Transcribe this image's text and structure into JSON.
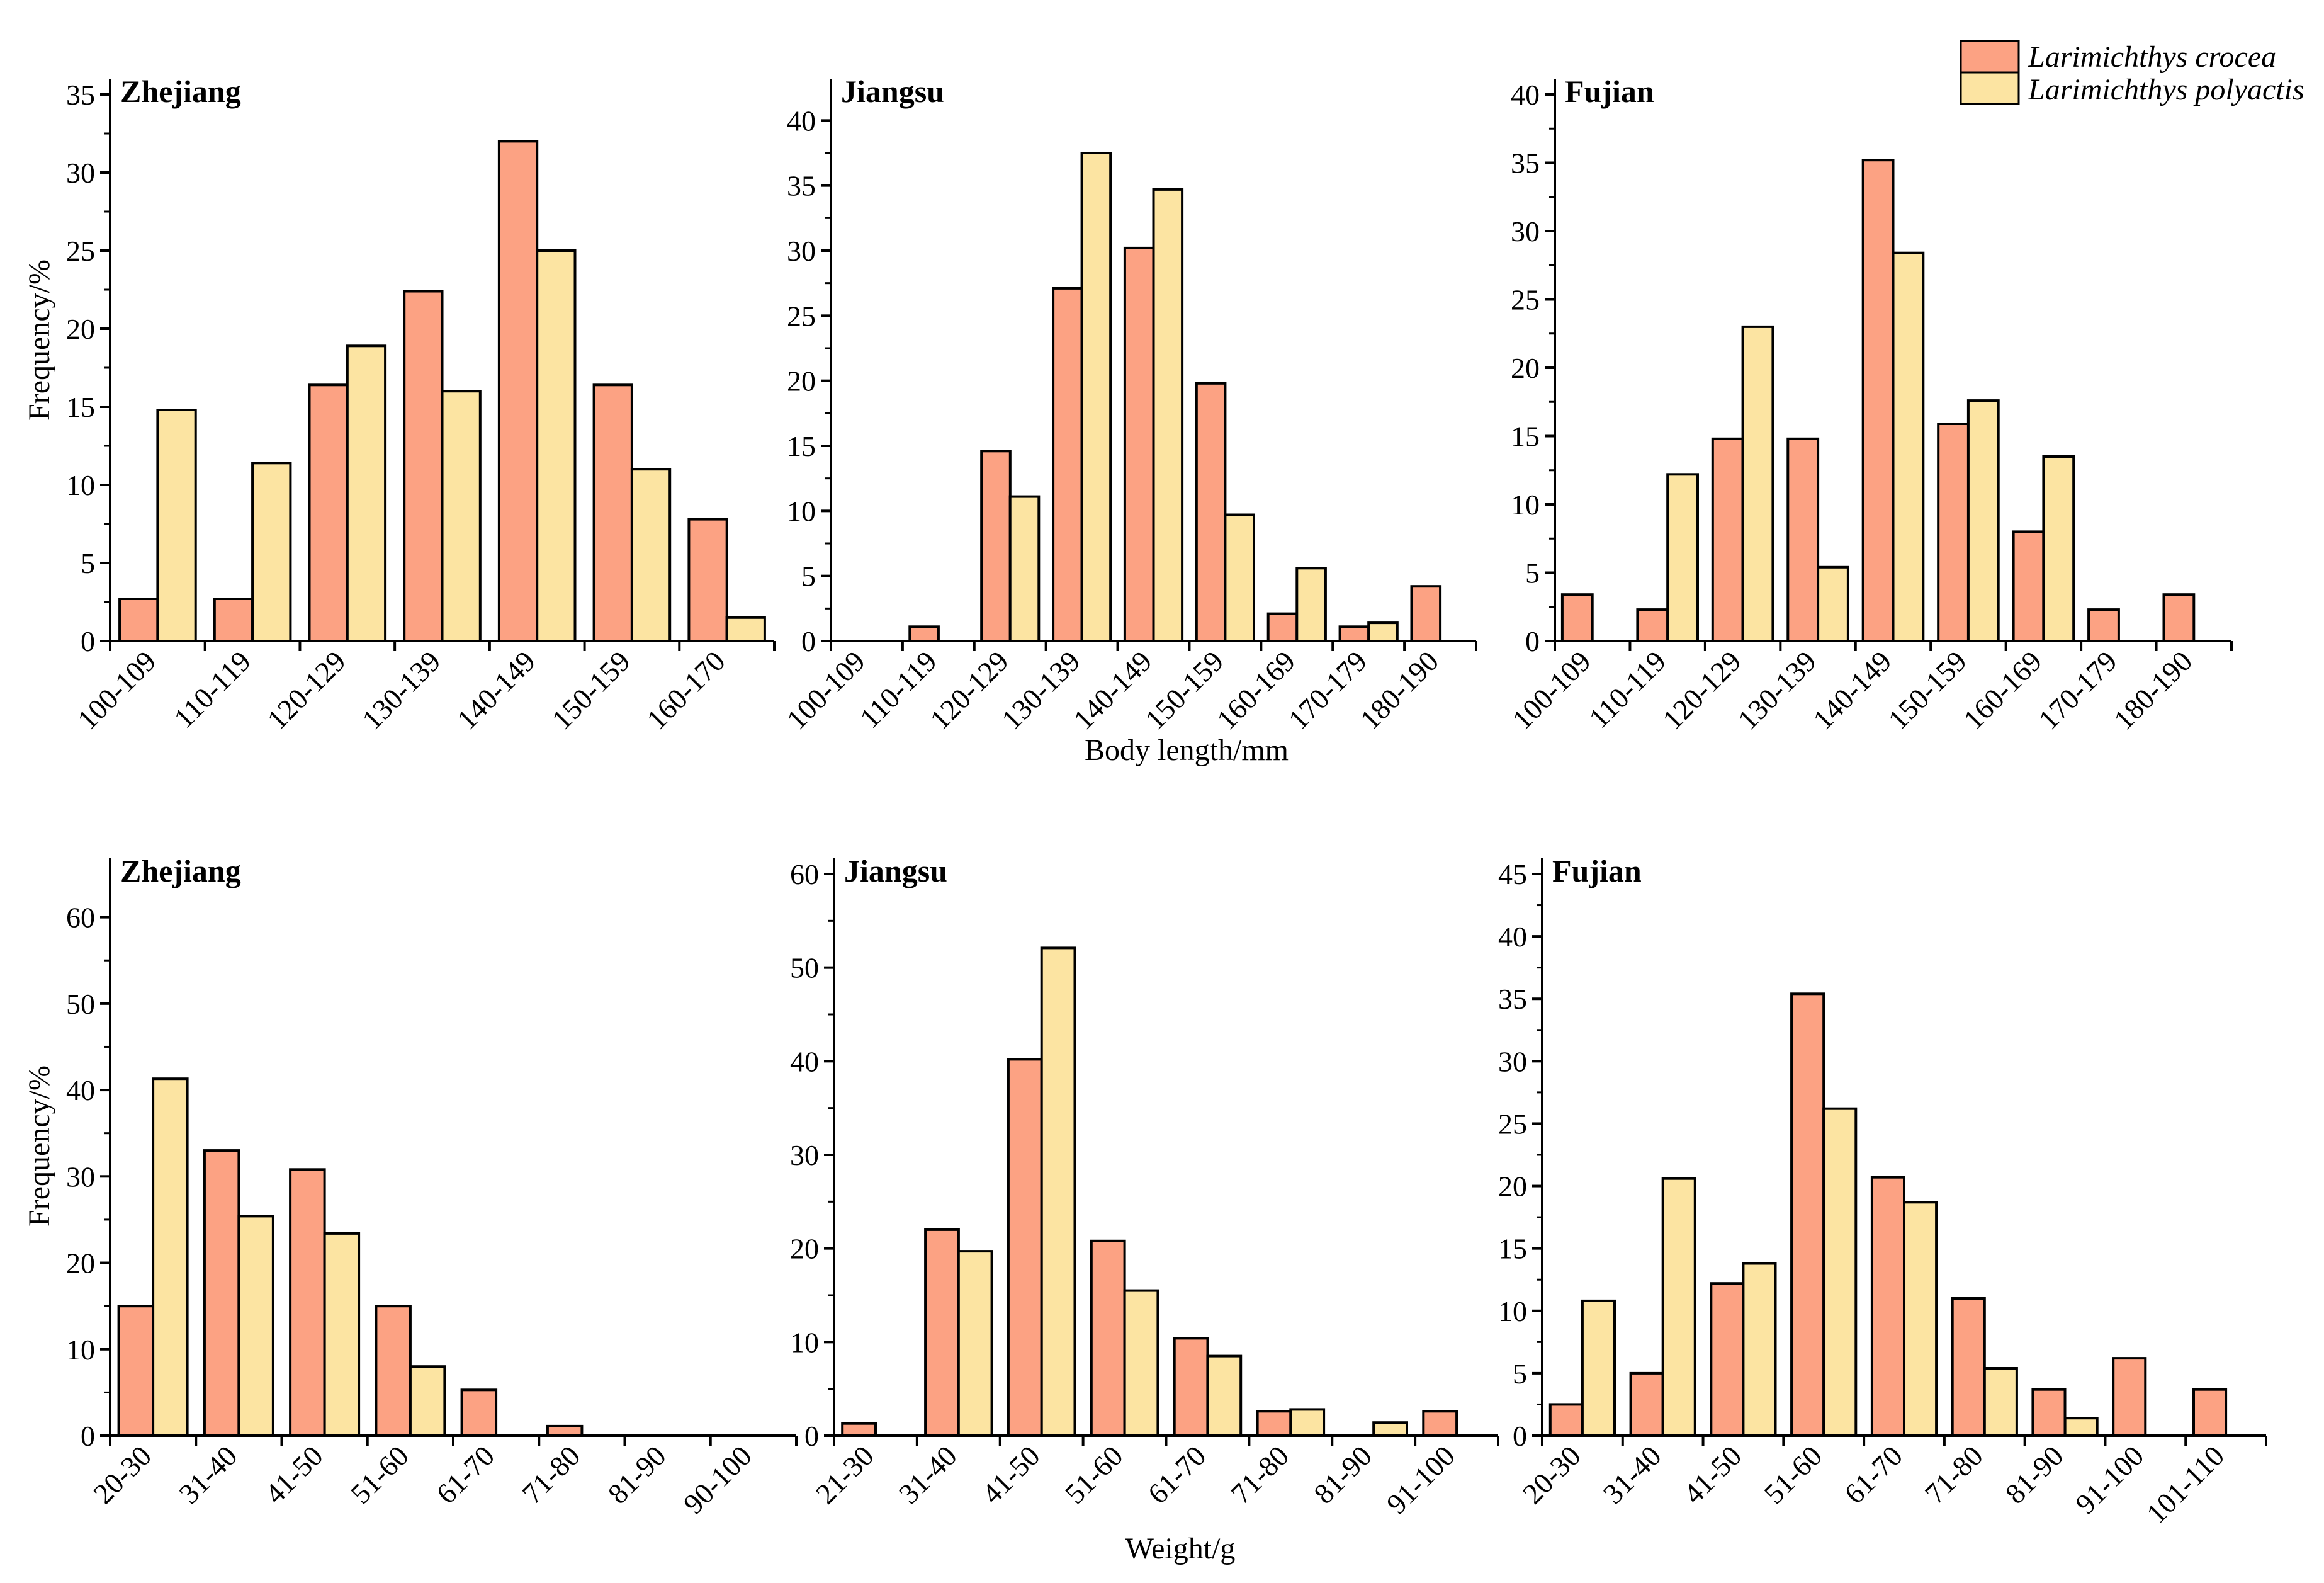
{
  "colors": {
    "crocea": "#fca283",
    "polyactis": "#fce4a2",
    "stroke": "#000000"
  },
  "legend": {
    "items": [
      {
        "key": "crocea",
        "label": "Larimichthys crocea"
      },
      {
        "key": "polyactis",
        "label": "Larimichthys polyactis"
      }
    ]
  },
  "labels": {
    "top_xlabel": "Body length/mm",
    "bottom_xlabel": "Weight/g",
    "ylabel": "Frequency/%"
  },
  "chart_data": [
    {
      "type": "bar",
      "title": "Zhejiang",
      "xlabel": "",
      "ylabel": "Frequency/%",
      "categories": [
        "100-109",
        "110-119",
        "120-129",
        "130-139",
        "140-149",
        "150-159",
        "160-170"
      ],
      "ylim": [
        0,
        35
      ],
      "yticks": [
        0,
        5,
        10,
        15,
        20,
        25,
        30,
        35
      ],
      "series": [
        {
          "name": "Larimichthys crocea",
          "values": [
            2.7,
            2.7,
            16.4,
            22.4,
            32.0,
            16.4,
            7.8
          ]
        },
        {
          "name": "Larimichthys polyactis",
          "values": [
            14.8,
            11.4,
            18.9,
            16.0,
            25.0,
            11.0,
            1.5
          ]
        }
      ]
    },
    {
      "type": "bar",
      "title": "Jiangsu",
      "xlabel": "Body length/mm",
      "ylabel": "",
      "categories": [
        "100-109",
        "110-119",
        "120-129",
        "130-139",
        "140-149",
        "150-159",
        "160-169",
        "170-179",
        "180-190"
      ],
      "ylim": [
        0,
        42
      ],
      "yticks": [
        0,
        5,
        10,
        15,
        20,
        25,
        30,
        35,
        40
      ],
      "series": [
        {
          "name": "Larimichthys crocea",
          "values": [
            0,
            1.1,
            14.6,
            27.1,
            30.2,
            19.8,
            2.1,
            1.1,
            4.2
          ]
        },
        {
          "name": "Larimichthys polyactis",
          "values": [
            0,
            0,
            11.1,
            37.5,
            34.7,
            9.7,
            5.6,
            1.4,
            0
          ]
        }
      ]
    },
    {
      "type": "bar",
      "title": "Fujian",
      "xlabel": "",
      "ylabel": "",
      "categories": [
        "100-109",
        "110-119",
        "120-129",
        "130-139",
        "140-149",
        "150-159",
        "160-169",
        "170-179",
        "180-190"
      ],
      "ylim": [
        0,
        40
      ],
      "yticks": [
        0,
        5,
        10,
        15,
        20,
        25,
        30,
        35,
        40
      ],
      "series": [
        {
          "name": "Larimichthys crocea",
          "values": [
            3.4,
            2.3,
            14.8,
            14.8,
            35.2,
            15.9,
            8.0,
            2.3,
            3.4
          ]
        },
        {
          "name": "Larimichthys polyactis",
          "values": [
            0,
            12.2,
            23.0,
            5.4,
            28.4,
            17.6,
            13.5,
            0,
            0
          ]
        }
      ]
    },
    {
      "type": "bar",
      "title": "Zhejiang",
      "xlabel": "",
      "ylabel": "Frequency/%",
      "categories": [
        "20-30",
        "31-40",
        "41-50",
        "51-60",
        "61-70",
        "71-80",
        "81-90",
        "90-100"
      ],
      "ylim": [
        0,
        65
      ],
      "yticks": [
        0,
        10,
        20,
        30,
        40,
        50,
        60
      ],
      "series": [
        {
          "name": "Larimichthys crocea",
          "values": [
            15.0,
            33.0,
            30.8,
            15.0,
            5.3,
            1.1,
            0,
            0
          ]
        },
        {
          "name": "Larimichthys polyactis",
          "values": [
            41.3,
            25.4,
            23.4,
            8.0,
            0,
            0,
            0,
            0
          ]
        }
      ]
    },
    {
      "type": "bar",
      "title": "Jiangsu",
      "xlabel": "Weight/g",
      "ylabel": "",
      "categories": [
        "21-30",
        "31-40",
        "41-50",
        "51-60",
        "61-70",
        "71-80",
        "81-90",
        "91-100"
      ],
      "ylim": [
        0,
        60
      ],
      "yticks": [
        0,
        10,
        20,
        30,
        40,
        50,
        60
      ],
      "series": [
        {
          "name": "Larimichthys crocea",
          "values": [
            1.3,
            22.0,
            40.2,
            20.8,
            10.4,
            2.6,
            0,
            2.6
          ]
        },
        {
          "name": "Larimichthys polyactis",
          "values": [
            0,
            19.7,
            52.1,
            15.5,
            8.5,
            2.8,
            1.4,
            0
          ]
        }
      ]
    },
    {
      "type": "bar",
      "title": "Fujian",
      "xlabel": "",
      "ylabel": "",
      "categories": [
        "20-30",
        "31-40",
        "41-50",
        "51-60",
        "61-70",
        "71-80",
        "81-90",
        "91-100",
        "101-110"
      ],
      "ylim": [
        0,
        45
      ],
      "yticks": [
        0,
        5,
        10,
        15,
        20,
        25,
        30,
        35,
        40,
        45
      ],
      "series": [
        {
          "name": "Larimichthys crocea",
          "values": [
            2.5,
            5.0,
            12.2,
            35.4,
            20.7,
            11.0,
            3.7,
            6.2,
            3.7
          ]
        },
        {
          "name": "Larimichthys polyactis",
          "values": [
            10.8,
            20.6,
            13.8,
            26.2,
            18.7,
            5.4,
            1.4,
            0,
            0
          ]
        }
      ]
    }
  ]
}
